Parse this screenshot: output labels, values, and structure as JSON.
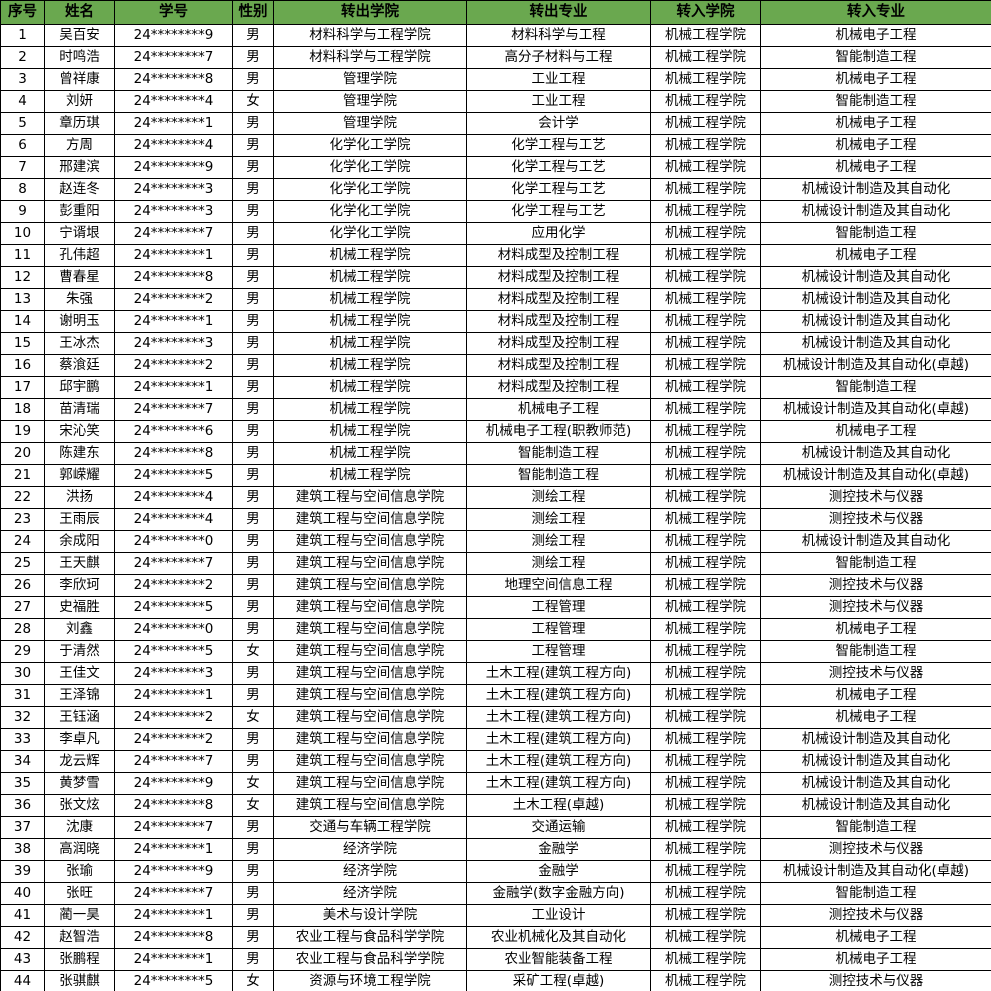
{
  "header": {
    "columns": [
      "序号",
      "姓名",
      "学号",
      "性别",
      "转出学院",
      "转出专业",
      "转入学院",
      "转入专业"
    ]
  },
  "colors": {
    "header_bg": "#6aa84f",
    "border": "#000000",
    "cell_bg": "#ffffff",
    "text": "#000000"
  },
  "rows": [
    {
      "no": "1",
      "name": "吴百安",
      "id": "24********9",
      "gender": "男",
      "from_college": "材料科学与工程学院",
      "from_major": "材料科学与工程",
      "to_college": "机械工程学院",
      "to_major": "机械电子工程"
    },
    {
      "no": "2",
      "name": "时鸣浩",
      "id": "24********7",
      "gender": "男",
      "from_college": "材料科学与工程学院",
      "from_major": "高分子材料与工程",
      "to_college": "机械工程学院",
      "to_major": "智能制造工程"
    },
    {
      "no": "3",
      "name": "曾祥康",
      "id": "24********8",
      "gender": "男",
      "from_college": "管理学院",
      "from_major": "工业工程",
      "to_college": "机械工程学院",
      "to_major": "机械电子工程"
    },
    {
      "no": "4",
      "name": "刘妍",
      "id": "24********4",
      "gender": "女",
      "from_college": "管理学院",
      "from_major": "工业工程",
      "to_college": "机械工程学院",
      "to_major": "智能制造工程"
    },
    {
      "no": "5",
      "name": "章历琪",
      "id": "24********1",
      "gender": "男",
      "from_college": "管理学院",
      "from_major": "会计学",
      "to_college": "机械工程学院",
      "to_major": "机械电子工程"
    },
    {
      "no": "6",
      "name": "方周",
      "id": "24********4",
      "gender": "男",
      "from_college": "化学化工学院",
      "from_major": "化学工程与工艺",
      "to_college": "机械工程学院",
      "to_major": "机械电子工程"
    },
    {
      "no": "7",
      "name": "邢建滨",
      "id": "24********9",
      "gender": "男",
      "from_college": "化学化工学院",
      "from_major": "化学工程与工艺",
      "to_college": "机械工程学院",
      "to_major": "机械电子工程"
    },
    {
      "no": "8",
      "name": "赵连冬",
      "id": "24********3",
      "gender": "男",
      "from_college": "化学化工学院",
      "from_major": "化学工程与工艺",
      "to_college": "机械工程学院",
      "to_major": "机械设计制造及其自动化"
    },
    {
      "no": "9",
      "name": "彭重阳",
      "id": "24********3",
      "gender": "男",
      "from_college": "化学化工学院",
      "from_major": "化学工程与工艺",
      "to_college": "机械工程学院",
      "to_major": "机械设计制造及其自动化"
    },
    {
      "no": "10",
      "name": "宁谞垠",
      "id": "24********7",
      "gender": "男",
      "from_college": "化学化工学院",
      "from_major": "应用化学",
      "to_college": "机械工程学院",
      "to_major": "智能制造工程"
    },
    {
      "no": "11",
      "name": "孔伟超",
      "id": "24********1",
      "gender": "男",
      "from_college": "机械工程学院",
      "from_major": "材料成型及控制工程",
      "to_college": "机械工程学院",
      "to_major": "机械电子工程"
    },
    {
      "no": "12",
      "name": "曹春星",
      "id": "24********8",
      "gender": "男",
      "from_college": "机械工程学院",
      "from_major": "材料成型及控制工程",
      "to_college": "机械工程学院",
      "to_major": "机械设计制造及其自动化"
    },
    {
      "no": "13",
      "name": "朱强",
      "id": "24********2",
      "gender": "男",
      "from_college": "机械工程学院",
      "from_major": "材料成型及控制工程",
      "to_college": "机械工程学院",
      "to_major": "机械设计制造及其自动化"
    },
    {
      "no": "14",
      "name": "谢明玉",
      "id": "24********1",
      "gender": "男",
      "from_college": "机械工程学院",
      "from_major": "材料成型及控制工程",
      "to_college": "机械工程学院",
      "to_major": "机械设计制造及其自动化"
    },
    {
      "no": "15",
      "name": "王冰杰",
      "id": "24********3",
      "gender": "男",
      "from_college": "机械工程学院",
      "from_major": "材料成型及控制工程",
      "to_college": "机械工程学院",
      "to_major": "机械设计制造及其自动化"
    },
    {
      "no": "16",
      "name": "蔡湌廷",
      "id": "24********2",
      "gender": "男",
      "from_college": "机械工程学院",
      "from_major": "材料成型及控制工程",
      "to_college": "机械工程学院",
      "to_major": "机械设计制造及其自动化(卓越)"
    },
    {
      "no": "17",
      "name": "邱宇鹏",
      "id": "24********1",
      "gender": "男",
      "from_college": "机械工程学院",
      "from_major": "材料成型及控制工程",
      "to_college": "机械工程学院",
      "to_major": "智能制造工程"
    },
    {
      "no": "18",
      "name": "苗清瑞",
      "id": "24********7",
      "gender": "男",
      "from_college": "机械工程学院",
      "from_major": "机械电子工程",
      "to_college": "机械工程学院",
      "to_major": "机械设计制造及其自动化(卓越)"
    },
    {
      "no": "19",
      "name": "宋沁笑",
      "id": "24********6",
      "gender": "男",
      "from_college": "机械工程学院",
      "from_major": "机械电子工程(职教师范)",
      "to_college": "机械工程学院",
      "to_major": "机械电子工程"
    },
    {
      "no": "20",
      "name": "陈建东",
      "id": "24********8",
      "gender": "男",
      "from_college": "机械工程学院",
      "from_major": "智能制造工程",
      "to_college": "机械工程学院",
      "to_major": "机械设计制造及其自动化"
    },
    {
      "no": "21",
      "name": "郭嵘耀",
      "id": "24********5",
      "gender": "男",
      "from_college": "机械工程学院",
      "from_major": "智能制造工程",
      "to_college": "机械工程学院",
      "to_major": "机械设计制造及其自动化(卓越)"
    },
    {
      "no": "22",
      "name": "洪扬",
      "id": "24********4",
      "gender": "男",
      "from_college": "建筑工程与空间信息学院",
      "from_major": "测绘工程",
      "to_college": "机械工程学院",
      "to_major": "测控技术与仪器"
    },
    {
      "no": "23",
      "name": "王雨辰",
      "id": "24********4",
      "gender": "男",
      "from_college": "建筑工程与空间信息学院",
      "from_major": "测绘工程",
      "to_college": "机械工程学院",
      "to_major": "测控技术与仪器"
    },
    {
      "no": "24",
      "name": "余成阳",
      "id": "24********0",
      "gender": "男",
      "from_college": "建筑工程与空间信息学院",
      "from_major": "测绘工程",
      "to_college": "机械工程学院",
      "to_major": "机械设计制造及其自动化"
    },
    {
      "no": "25",
      "name": "王天麒",
      "id": "24********7",
      "gender": "男",
      "from_college": "建筑工程与空间信息学院",
      "from_major": "测绘工程",
      "to_college": "机械工程学院",
      "to_major": "智能制造工程"
    },
    {
      "no": "26",
      "name": "李欣珂",
      "id": "24********2",
      "gender": "男",
      "from_college": "建筑工程与空间信息学院",
      "from_major": "地理空间信息工程",
      "to_college": "机械工程学院",
      "to_major": "测控技术与仪器"
    },
    {
      "no": "27",
      "name": "史福胜",
      "id": "24********5",
      "gender": "男",
      "from_college": "建筑工程与空间信息学院",
      "from_major": "工程管理",
      "to_college": "机械工程学院",
      "to_major": "测控技术与仪器"
    },
    {
      "no": "28",
      "name": "刘鑫",
      "id": "24********0",
      "gender": "男",
      "from_college": "建筑工程与空间信息学院",
      "from_major": "工程管理",
      "to_college": "机械工程学院",
      "to_major": "机械电子工程"
    },
    {
      "no": "29",
      "name": "于清然",
      "id": "24********5",
      "gender": "女",
      "from_college": "建筑工程与空间信息学院",
      "from_major": "工程管理",
      "to_college": "机械工程学院",
      "to_major": "智能制造工程"
    },
    {
      "no": "30",
      "name": "王佳文",
      "id": "24********3",
      "gender": "男",
      "from_college": "建筑工程与空间信息学院",
      "from_major": "土木工程(建筑工程方向)",
      "to_college": "机械工程学院",
      "to_major": "测控技术与仪器"
    },
    {
      "no": "31",
      "name": "王泽锦",
      "id": "24********1",
      "gender": "男",
      "from_college": "建筑工程与空间信息学院",
      "from_major": "土木工程(建筑工程方向)",
      "to_college": "机械工程学院",
      "to_major": "机械电子工程"
    },
    {
      "no": "32",
      "name": "王钰涵",
      "id": "24********2",
      "gender": "女",
      "from_college": "建筑工程与空间信息学院",
      "from_major": "土木工程(建筑工程方向)",
      "to_college": "机械工程学院",
      "to_major": "机械电子工程"
    },
    {
      "no": "33",
      "name": "李卓凡",
      "id": "24********2",
      "gender": "男",
      "from_college": "建筑工程与空间信息学院",
      "from_major": "土木工程(建筑工程方向)",
      "to_college": "机械工程学院",
      "to_major": "机械设计制造及其自动化"
    },
    {
      "no": "34",
      "name": "龙云辉",
      "id": "24********7",
      "gender": "男",
      "from_college": "建筑工程与空间信息学院",
      "from_major": "土木工程(建筑工程方向)",
      "to_college": "机械工程学院",
      "to_major": "机械设计制造及其自动化"
    },
    {
      "no": "35",
      "name": "黄梦雪",
      "id": "24********9",
      "gender": "女",
      "from_college": "建筑工程与空间信息学院",
      "from_major": "土木工程(建筑工程方向)",
      "to_college": "机械工程学院",
      "to_major": "机械设计制造及其自动化"
    },
    {
      "no": "36",
      "name": "张文炫",
      "id": "24********8",
      "gender": "女",
      "from_college": "建筑工程与空间信息学院",
      "from_major": "土木工程(卓越)",
      "to_college": "机械工程学院",
      "to_major": "机械设计制造及其自动化"
    },
    {
      "no": "37",
      "name": "沈康",
      "id": "24********7",
      "gender": "男",
      "from_college": "交通与车辆工程学院",
      "from_major": "交通运输",
      "to_college": "机械工程学院",
      "to_major": "智能制造工程"
    },
    {
      "no": "38",
      "name": "高润晓",
      "id": "24********1",
      "gender": "男",
      "from_college": "经济学院",
      "from_major": "金融学",
      "to_college": "机械工程学院",
      "to_major": "测控技术与仪器"
    },
    {
      "no": "39",
      "name": "张瑜",
      "id": "24********9",
      "gender": "男",
      "from_college": "经济学院",
      "from_major": "金融学",
      "to_college": "机械工程学院",
      "to_major": "机械设计制造及其自动化(卓越)"
    },
    {
      "no": "40",
      "name": "张旺",
      "id": "24********7",
      "gender": "男",
      "from_college": "经济学院",
      "from_major": "金融学(数字金融方向)",
      "to_college": "机械工程学院",
      "to_major": "智能制造工程"
    },
    {
      "no": "41",
      "name": "蔺一昊",
      "id": "24********1",
      "gender": "男",
      "from_college": "美术与设计学院",
      "from_major": "工业设计",
      "to_college": "机械工程学院",
      "to_major": "测控技术与仪器"
    },
    {
      "no": "42",
      "name": "赵智浩",
      "id": "24********8",
      "gender": "男",
      "from_college": "农业工程与食品科学学院",
      "from_major": "农业机械化及其自动化",
      "to_college": "机械工程学院",
      "to_major": "机械电子工程"
    },
    {
      "no": "43",
      "name": "张鹏程",
      "id": "24********1",
      "gender": "男",
      "from_college": "农业工程与食品科学学院",
      "from_major": "农业智能装备工程",
      "to_college": "机械工程学院",
      "to_major": "机械电子工程"
    },
    {
      "no": "44",
      "name": "张骐麒",
      "id": "24********5",
      "gender": "女",
      "from_college": "资源与环境工程学院",
      "from_major": "采矿工程(卓越)",
      "to_college": "机械工程学院",
      "to_major": "测控技术与仪器"
    }
  ]
}
